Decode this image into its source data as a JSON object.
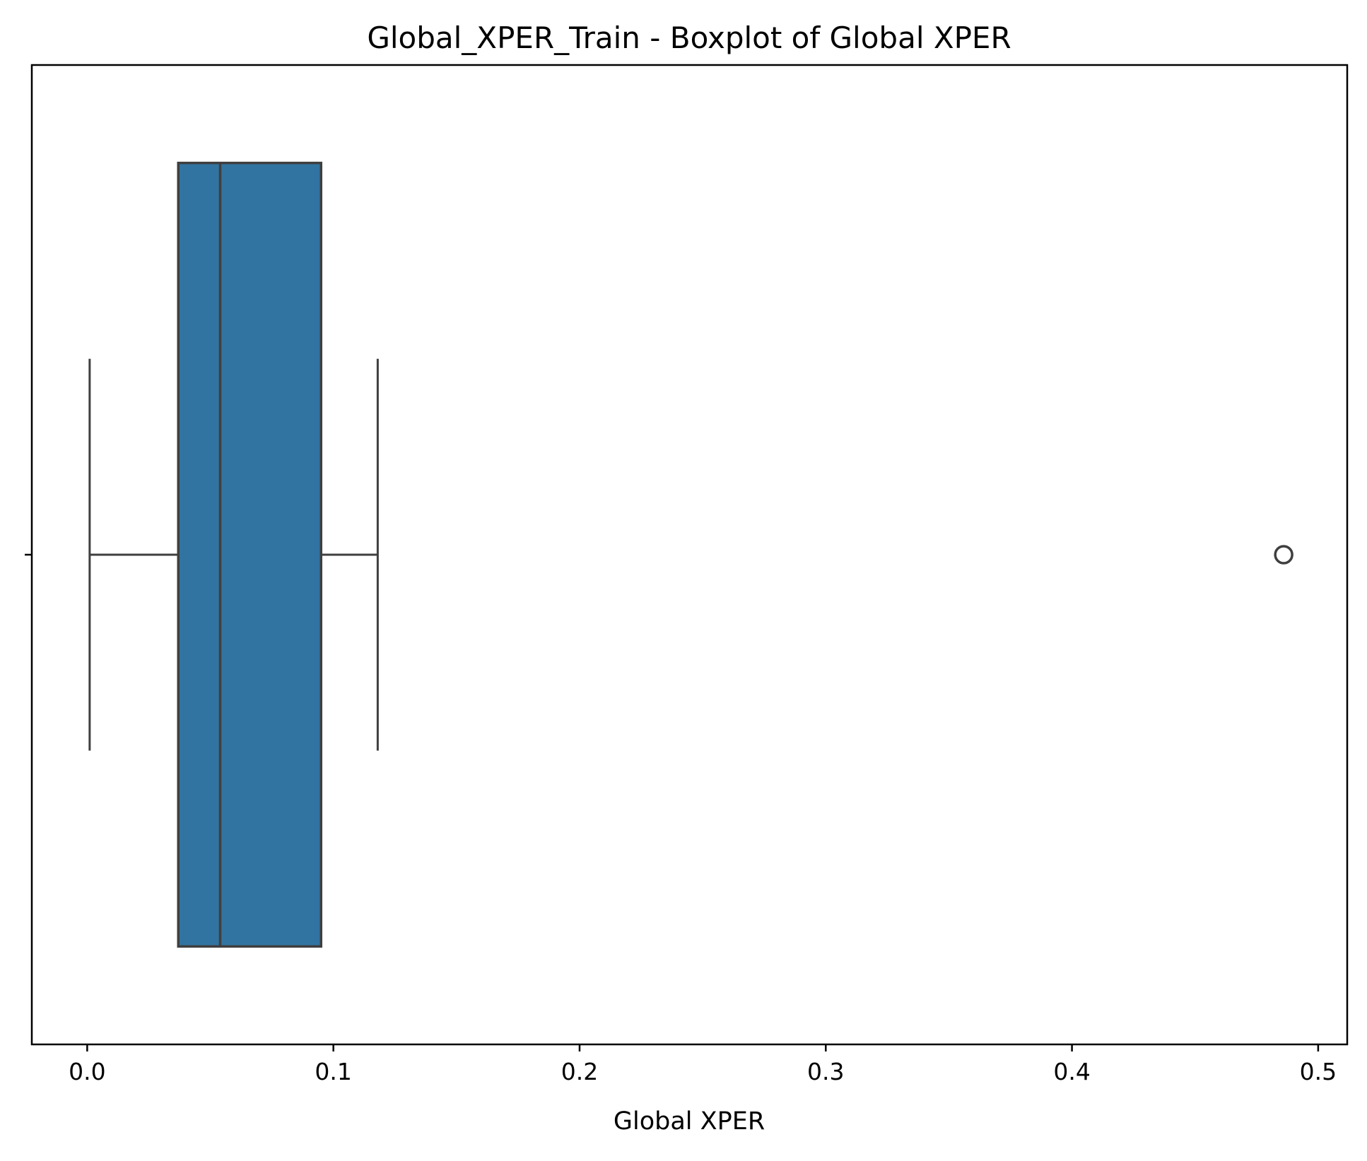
{
  "chart_data": {
    "type": "boxplot",
    "title": "Global_XPER_Train - Boxplot of Global XPER",
    "xlabel": "Global XPER",
    "ylabel": "",
    "xlim": [
      -0.0225,
      0.5118
    ],
    "xticks": [
      0.0,
      0.1,
      0.2,
      0.3,
      0.4,
      0.5
    ],
    "xtick_labels": [
      "0.0",
      "0.1",
      "0.2",
      "0.3",
      "0.4",
      "0.5"
    ],
    "orientation": "horizontal",
    "grid": false,
    "box": {
      "whisker_low": 0.001,
      "q1": 0.037,
      "median": 0.054,
      "q3": 0.095,
      "whisker_high": 0.118,
      "outliers": [
        0.486
      ]
    },
    "colors": {
      "box_fill": "#3274a1",
      "line": "#3f3f3f",
      "axis": "#000000"
    }
  }
}
